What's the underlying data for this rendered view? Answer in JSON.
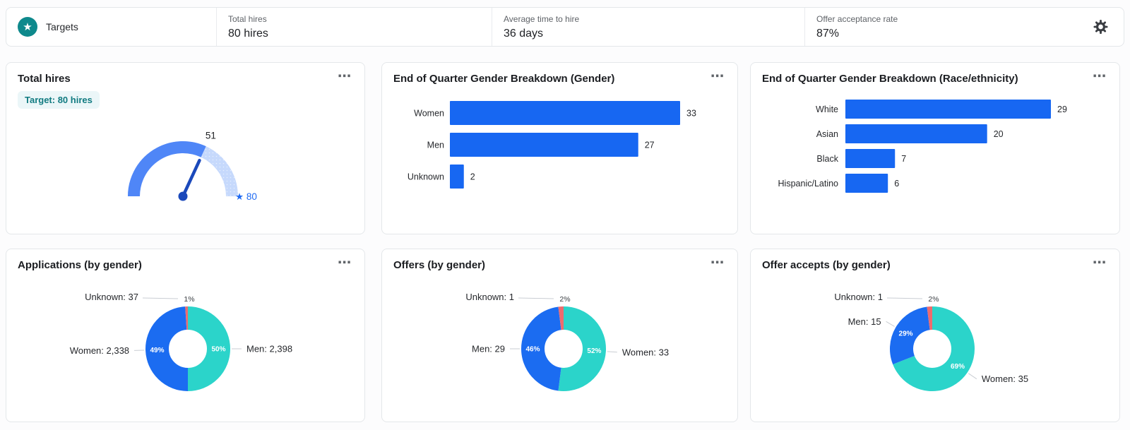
{
  "app": {
    "title": "Targets"
  },
  "top_bar": {
    "metrics": [
      {
        "label": "Total hires",
        "value": "80 hires"
      },
      {
        "label": "Average time to hire",
        "value": "36 days"
      },
      {
        "label": "Offer acceptance rate",
        "value": "87%"
      }
    ]
  },
  "icons": {
    "logo": "star-in-circle-icon",
    "settings": "gear-icon",
    "card_menu": "ellipsis-icon",
    "target_marker": "star-icon",
    "menu_glyph": "⋯",
    "star_glyph": "★"
  },
  "colors": {
    "brand_teal": "#0e898c",
    "primary_blue": "#1767f2",
    "donut_blue": "#1b6cf1",
    "cyan": "#2bd4ca",
    "red": "#ee6b6e",
    "gauge_fill": "#4f86f7",
    "gauge_track": "#c6d9fc",
    "needle": "#1b49bb",
    "link_blue": "#1f6bf3",
    "badge_bg": "#ebf6f8",
    "badge_text": "#117b81",
    "bar_label": "#26282c",
    "leader_line": "#c9cdd3",
    "pct_outside": "#3c4045",
    "pct_inside": "#ffffff"
  },
  "chart_data": [
    {
      "id": "total-hires-gauge",
      "type": "gauge",
      "title": "Total hires",
      "badge": "Target: 80 hires",
      "value": 51,
      "target": 80,
      "value_label": "51",
      "target_label": "80"
    },
    {
      "id": "eoq-gender",
      "type": "bar",
      "title": "End of Quarter Gender Breakdown (Gender)",
      "categories": [
        "Women",
        "Men",
        "Unknown"
      ],
      "values": [
        33,
        27,
        2
      ]
    },
    {
      "id": "eoq-race",
      "type": "bar",
      "title": "End of Quarter Gender Breakdown (Race/ethnicity)",
      "categories": [
        "White",
        "Asian",
        "Black",
        "Hispanic/Latino"
      ],
      "values": [
        29,
        20,
        7,
        6
      ]
    },
    {
      "id": "applications-by-gender",
      "type": "donut",
      "title": "Applications (by gender)",
      "slices": [
        {
          "label": "Men",
          "value": "2,398",
          "display": "Men: 2,398",
          "pct": 50,
          "pct_label": "50%",
          "color": "#2bd4ca",
          "outside": false
        },
        {
          "label": "Women",
          "value": "2,338",
          "display": "Women: 2,338",
          "pct": 49,
          "pct_label": "49%",
          "color": "#1b6cf1",
          "outside": false
        },
        {
          "label": "Unknown",
          "value": "37",
          "display": "Unknown: 37",
          "pct": 1,
          "pct_label": "1%",
          "color": "#ee6b6e",
          "outside": true
        }
      ]
    },
    {
      "id": "offers-by-gender",
      "type": "donut",
      "title": "Offers (by gender)",
      "slices": [
        {
          "label": "Women",
          "value": "33",
          "display": "Women: 33",
          "pct": 52,
          "pct_label": "52%",
          "color": "#2bd4ca",
          "outside": false
        },
        {
          "label": "Men",
          "value": "29",
          "display": "Men: 29",
          "pct": 46,
          "pct_label": "46%",
          "color": "#1b6cf1",
          "outside": false
        },
        {
          "label": "Unknown",
          "value": "1",
          "display": "Unknown: 1",
          "pct": 2,
          "pct_label": "2%",
          "color": "#ee6b6e",
          "outside": true
        }
      ]
    },
    {
      "id": "offer-accepts-by-gender",
      "type": "donut",
      "title": "Offer accepts (by gender)",
      "slices": [
        {
          "label": "Women",
          "value": "35",
          "display": "Women: 35",
          "pct": 69,
          "pct_label": "69%",
          "color": "#2bd4ca",
          "outside": false
        },
        {
          "label": "Men",
          "value": "15",
          "display": "Men: 15",
          "pct": 29,
          "pct_label": "29%",
          "color": "#1b6cf1",
          "outside": false
        },
        {
          "label": "Unknown",
          "value": "1",
          "display": "Unknown: 1",
          "pct": 2,
          "pct_label": "2%",
          "color": "#ee6b6e",
          "outside": true
        }
      ]
    }
  ]
}
